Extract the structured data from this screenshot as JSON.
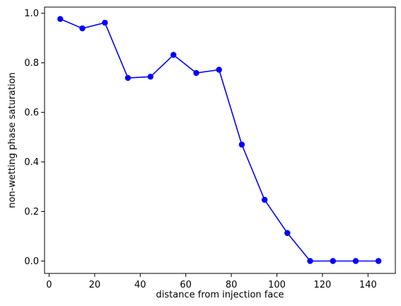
{
  "chart_data": {
    "type": "line",
    "title": "",
    "xlabel": "distance from injection face",
    "ylabel": "non-wetting phase saturation",
    "xlim": [
      -2,
      152
    ],
    "ylim": [
      -0.05,
      1.025
    ],
    "grid": false,
    "legend": "none",
    "x_ticks": [
      0,
      20,
      40,
      60,
      80,
      100,
      120,
      140
    ],
    "y_ticks": [
      0.0,
      0.2,
      0.4,
      0.6,
      0.8,
      1.0
    ],
    "x_tick_labels": [
      "0",
      "20",
      "40",
      "60",
      "80",
      "100",
      "120",
      "140"
    ],
    "y_tick_labels": [
      "0.0",
      "0.2",
      "0.4",
      "0.6",
      "0.8",
      "1.0"
    ],
    "series": [
      {
        "color": "#0000ff",
        "marker": "circle",
        "x": [
          4.9,
          14.6,
          24.5,
          34.6,
          44.5,
          54.6,
          64.6,
          74.6,
          84.6,
          94.6,
          104.6,
          114.6,
          124.6,
          134.6,
          144.6
        ],
        "y": [
          0.977,
          0.939,
          0.962,
          0.739,
          0.744,
          0.832,
          0.759,
          0.772,
          0.47,
          0.247,
          0.113,
          0.0,
          0.0,
          0.0,
          0.0
        ]
      }
    ]
  }
}
